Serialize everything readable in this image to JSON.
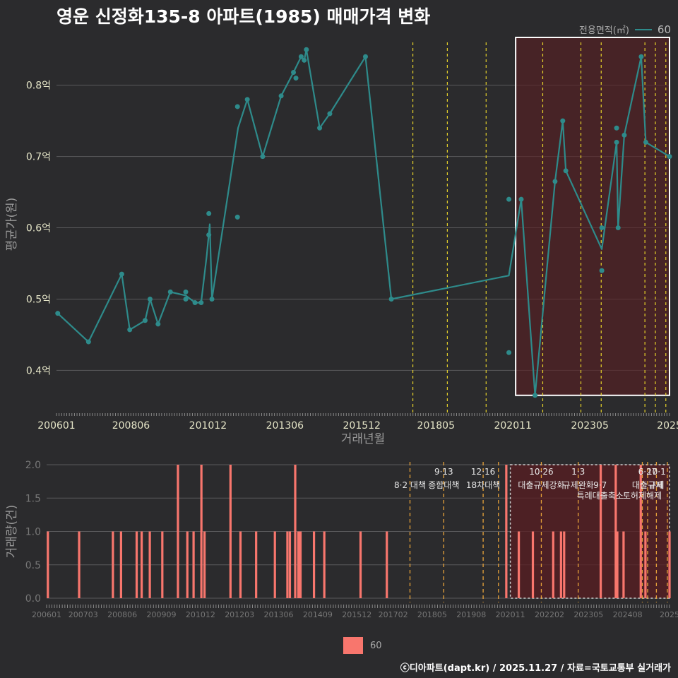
{
  "title": "영운 신정화135-8 아파트(1985) 매매가격 변화",
  "legend": {
    "title": "전용면적(㎡)",
    "label": "60"
  },
  "footer": "ⓒ디아파트(dapt.kr) / 2025.11.27 / 자료=국토교통부 실거래가",
  "colors": {
    "line": "#2e8b8b",
    "bar": "#f8766d",
    "highlight": "#5a1e22",
    "policy": "#e6d22a",
    "policy_bottom": "#e8a33a"
  },
  "chart_data": [
    {
      "type": "line",
      "title": "영운 신정화135-8 아파트(1985) 매매가격 변화",
      "xlabel": "거래년월",
      "ylabel": "평균가(원)",
      "x_range": [
        2006.0,
        2025.92
      ],
      "ylim": [
        0.34,
        0.87
      ],
      "y_ticks": [
        0.4,
        0.5,
        0.6,
        0.7,
        0.8
      ],
      "y_tick_labels": [
        "0.4억",
        "0.5억",
        "0.6억",
        "0.7억",
        "0.8억"
      ],
      "x_ticks": [
        2006.0,
        2008.42,
        2010.92,
        2013.42,
        2015.92,
        2018.33,
        2020.83,
        2023.33,
        2025.92
      ],
      "x_tick_labels": [
        "200601",
        "200806",
        "201012",
        "201306",
        "201512",
        "201805",
        "202011",
        "202305",
        "2025"
      ],
      "highlight_range": {
        "x": [
          2020.92,
          2025.92
        ],
        "y": [
          0.365,
          0.867
        ]
      },
      "policy_lines": [
        2017.58,
        2018.7,
        2019.96,
        2021.8,
        2023.04,
        2023.7,
        2025.12,
        2025.46,
        2025.8
      ],
      "series": [
        {
          "name": "60",
          "line": [
            [
              2006.04,
              0.48
            ],
            [
              2007.04,
              0.44
            ],
            [
              2008.12,
              0.535
            ],
            [
              2008.38,
              0.457
            ],
            [
              2008.88,
              0.47
            ],
            [
              2009.04,
              0.5
            ],
            [
              2009.3,
              0.465
            ],
            [
              2009.7,
              0.51
            ],
            [
              2010.2,
              0.505
            ],
            [
              2010.5,
              0.495
            ],
            [
              2010.7,
              0.495
            ],
            [
              2010.88,
              0.56
            ],
            [
              2010.98,
              0.605
            ],
            [
              2011.05,
              0.5
            ],
            [
              2011.9,
              0.74
            ],
            [
              2012.2,
              0.78
            ],
            [
              2012.7,
              0.7
            ],
            [
              2013.3,
              0.785
            ],
            [
              2013.7,
              0.818
            ],
            [
              2013.95,
              0.84
            ],
            [
              2014.05,
              0.835
            ],
            [
              2014.12,
              0.85
            ],
            [
              2014.55,
              0.74
            ],
            [
              2014.88,
              0.76
            ],
            [
              2016.04,
              0.84
            ],
            [
              2016.88,
              0.5
            ],
            [
              2020.7,
              0.533
            ],
            [
              2021.1,
              0.64
            ],
            [
              2021.55,
              0.365
            ],
            [
              2022.2,
              0.665
            ],
            [
              2022.45,
              0.75
            ],
            [
              2022.55,
              0.68
            ],
            [
              2023.72,
              0.57
            ],
            [
              2024.2,
              0.72
            ],
            [
              2024.25,
              0.6
            ],
            [
              2024.45,
              0.73
            ],
            [
              2025.0,
              0.84
            ],
            [
              2025.15,
              0.72
            ],
            [
              2025.92,
              0.7
            ]
          ],
          "points": [
            [
              2006.04,
              0.48
            ],
            [
              2007.04,
              0.44
            ],
            [
              2008.12,
              0.535
            ],
            [
              2008.38,
              0.457
            ],
            [
              2008.88,
              0.47
            ],
            [
              2009.04,
              0.5
            ],
            [
              2009.3,
              0.465
            ],
            [
              2009.7,
              0.51
            ],
            [
              2010.2,
              0.51
            ],
            [
              2010.2,
              0.5
            ],
            [
              2010.5,
              0.495
            ],
            [
              2010.7,
              0.495
            ],
            [
              2010.95,
              0.62
            ],
            [
              2010.95,
              0.59
            ],
            [
              2011.05,
              0.5
            ],
            [
              2011.88,
              0.77
            ],
            [
              2011.88,
              0.615
            ],
            [
              2012.2,
              0.78
            ],
            [
              2012.7,
              0.7
            ],
            [
              2013.3,
              0.785
            ],
            [
              2013.7,
              0.818
            ],
            [
              2013.78,
              0.81
            ],
            [
              2013.95,
              0.84
            ],
            [
              2014.05,
              0.835
            ],
            [
              2014.12,
              0.85
            ],
            [
              2014.55,
              0.74
            ],
            [
              2014.88,
              0.76
            ],
            [
              2016.04,
              0.84
            ],
            [
              2016.88,
              0.5
            ],
            [
              2020.7,
              0.64
            ],
            [
              2020.7,
              0.425
            ],
            [
              2021.1,
              0.64
            ],
            [
              2021.55,
              0.365
            ],
            [
              2022.2,
              0.665
            ],
            [
              2022.45,
              0.75
            ],
            [
              2022.55,
              0.68
            ],
            [
              2023.72,
              0.54
            ],
            [
              2023.72,
              0.6
            ],
            [
              2024.2,
              0.74
            ],
            [
              2024.2,
              0.72
            ],
            [
              2024.25,
              0.6
            ],
            [
              2024.45,
              0.73
            ],
            [
              2025.0,
              0.84
            ],
            [
              2025.15,
              0.72
            ],
            [
              2025.92,
              0.7
            ]
          ]
        }
      ]
    },
    {
      "type": "bar",
      "ylabel": "거래량(건)",
      "x_range": [
        2006.0,
        2025.92
      ],
      "ylim": [
        0,
        2.0
      ],
      "y_ticks": [
        0,
        0.5,
        1.0,
        1.5,
        2.0
      ],
      "y_tick_labels": [
        "0.0",
        "0.5",
        "1.0",
        "1.5",
        "2.0"
      ],
      "x_ticks": [
        2006.0,
        2007.17,
        2008.42,
        2009.67,
        2010.92,
        2012.17,
        2013.42,
        2014.67,
        2015.92,
        2017.08,
        2018.33,
        2019.58,
        2020.83,
        2022.08,
        2023.33,
        2024.58,
        2025.92
      ],
      "x_tick_labels": [
        "200601",
        "200703",
        "200806",
        "200909",
        "201012",
        "201203",
        "201306",
        "201409",
        "201512",
        "201702",
        "201805",
        "201908",
        "202011",
        "202202",
        "202305",
        "202408",
        "2025"
      ],
      "highlight_range": {
        "x": [
          2020.83,
          2025.92
        ],
        "y": [
          0,
          2.0
        ]
      },
      "policy_lines": [
        2017.62,
        2018.7,
        2019.96,
        2020.45,
        2021.82,
        2023.0,
        2025.05,
        2025.22,
        2025.5,
        2025.85
      ],
      "annotations": [
        {
          "x": 2017.62,
          "row": 1,
          "text": "8·2 대책"
        },
        {
          "x": 2018.7,
          "row": 0,
          "text": "9·13"
        },
        {
          "x": 2018.7,
          "row": 1,
          "text": "종합대책"
        },
        {
          "x": 2019.96,
          "row": 0,
          "text": "12·16"
        },
        {
          "x": 2019.96,
          "row": 1,
          "text": "18차대책"
        },
        {
          "x": 2021.82,
          "row": 0,
          "text": "10·26"
        },
        {
          "x": 2021.82,
          "row": 1,
          "text": "대출규제강화"
        },
        {
          "x": 2023.0,
          "row": 0,
          "text": "1·3"
        },
        {
          "x": 2023.0,
          "row": 1,
          "text": "규제완화"
        },
        {
          "x": 2023.7,
          "row": 1,
          "text": "9·7"
        },
        {
          "x": 2023.7,
          "row": 2,
          "text": "특례대출축소"
        },
        {
          "x": 2025.22,
          "row": 0,
          "text": "6·27"
        },
        {
          "x": 2025.22,
          "row": 1,
          "text": "대출규제"
        },
        {
          "x": 2025.5,
          "row": 0,
          "text": "10·1"
        },
        {
          "x": 2025.5,
          "row": 1,
          "text": "규제"
        },
        {
          "x": 2025.05,
          "row": 2,
          "text": "토허제해제"
        }
      ],
      "series": [
        {
          "name": "60",
          "x": [
            2006.04,
            2007.04,
            2008.12,
            2008.38,
            2008.88,
            2009.04,
            2009.3,
            2009.7,
            2010.2,
            2010.5,
            2010.7,
            2010.95,
            2011.05,
            2011.88,
            2012.2,
            2012.7,
            2013.3,
            2013.7,
            2013.78,
            2013.95,
            2014.05,
            2014.12,
            2014.55,
            2014.88,
            2016.04,
            2016.88,
            2020.7,
            2021.1,
            2021.55,
            2022.2,
            2022.45,
            2022.55,
            2023.72,
            2024.2,
            2024.25,
            2024.45,
            2025.0,
            2025.15,
            2025.92
          ],
          "values": [
            1,
            1,
            1,
            1,
            1,
            1,
            1,
            1,
            2,
            1,
            1,
            2,
            1,
            2,
            1,
            1,
            1,
            1,
            1,
            2,
            1,
            1,
            1,
            1,
            1,
            1,
            2,
            1,
            1,
            1,
            1,
            1,
            2,
            2,
            1,
            1,
            2,
            1,
            1
          ]
        }
      ]
    }
  ]
}
